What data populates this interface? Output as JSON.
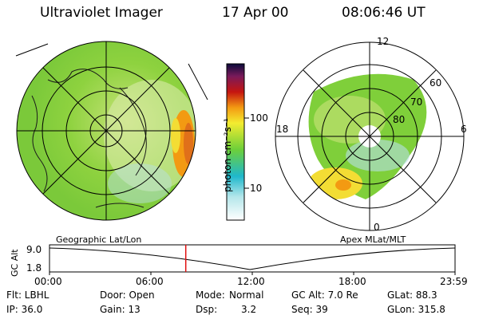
{
  "header": {
    "title": "Ultraviolet Imager",
    "date": "17 Apr 00",
    "time": "08:06:46 UT"
  },
  "colors": {
    "low": "#1fb8cc",
    "mid": "#86d83a",
    "high": "#f39a12",
    "max": "#c51510"
  },
  "colorbar": {
    "label": "photon cm⁻²s⁻¹",
    "ticks": [
      "100",
      "10"
    ]
  },
  "geographic_map": {
    "label": "Geographic Lat/Lon"
  },
  "apex_map": {
    "label": "Apex MLat/MLT",
    "mlt_labels": {
      "top": "12",
      "left": "18",
      "right": "6",
      "bottom": "0"
    },
    "lat_labels": [
      "60",
      "70",
      "80"
    ]
  },
  "altitude_plot": {
    "ylabel": "GC Alt",
    "yticks": [
      "9.0",
      "1.8"
    ],
    "xticks": [
      "00:00",
      "06:00",
      "12:00",
      "18:00",
      "23:59"
    ],
    "current_time_fraction": 0.336
  },
  "info": {
    "filter": "Flt: LBHL",
    "ip": "IP: 36.0",
    "door": "Door: Open",
    "gain": "Gain: 13",
    "mode_label": "Mode:",
    "mode_value": "Normal",
    "dsp_label": "Dsp:",
    "dsp_value": "3.2",
    "gc_alt": "GC Alt: 7.0 Re",
    "seq": "Seq: 39",
    "glat": "GLat: 88.3",
    "glon": "GLon: 315.8"
  }
}
